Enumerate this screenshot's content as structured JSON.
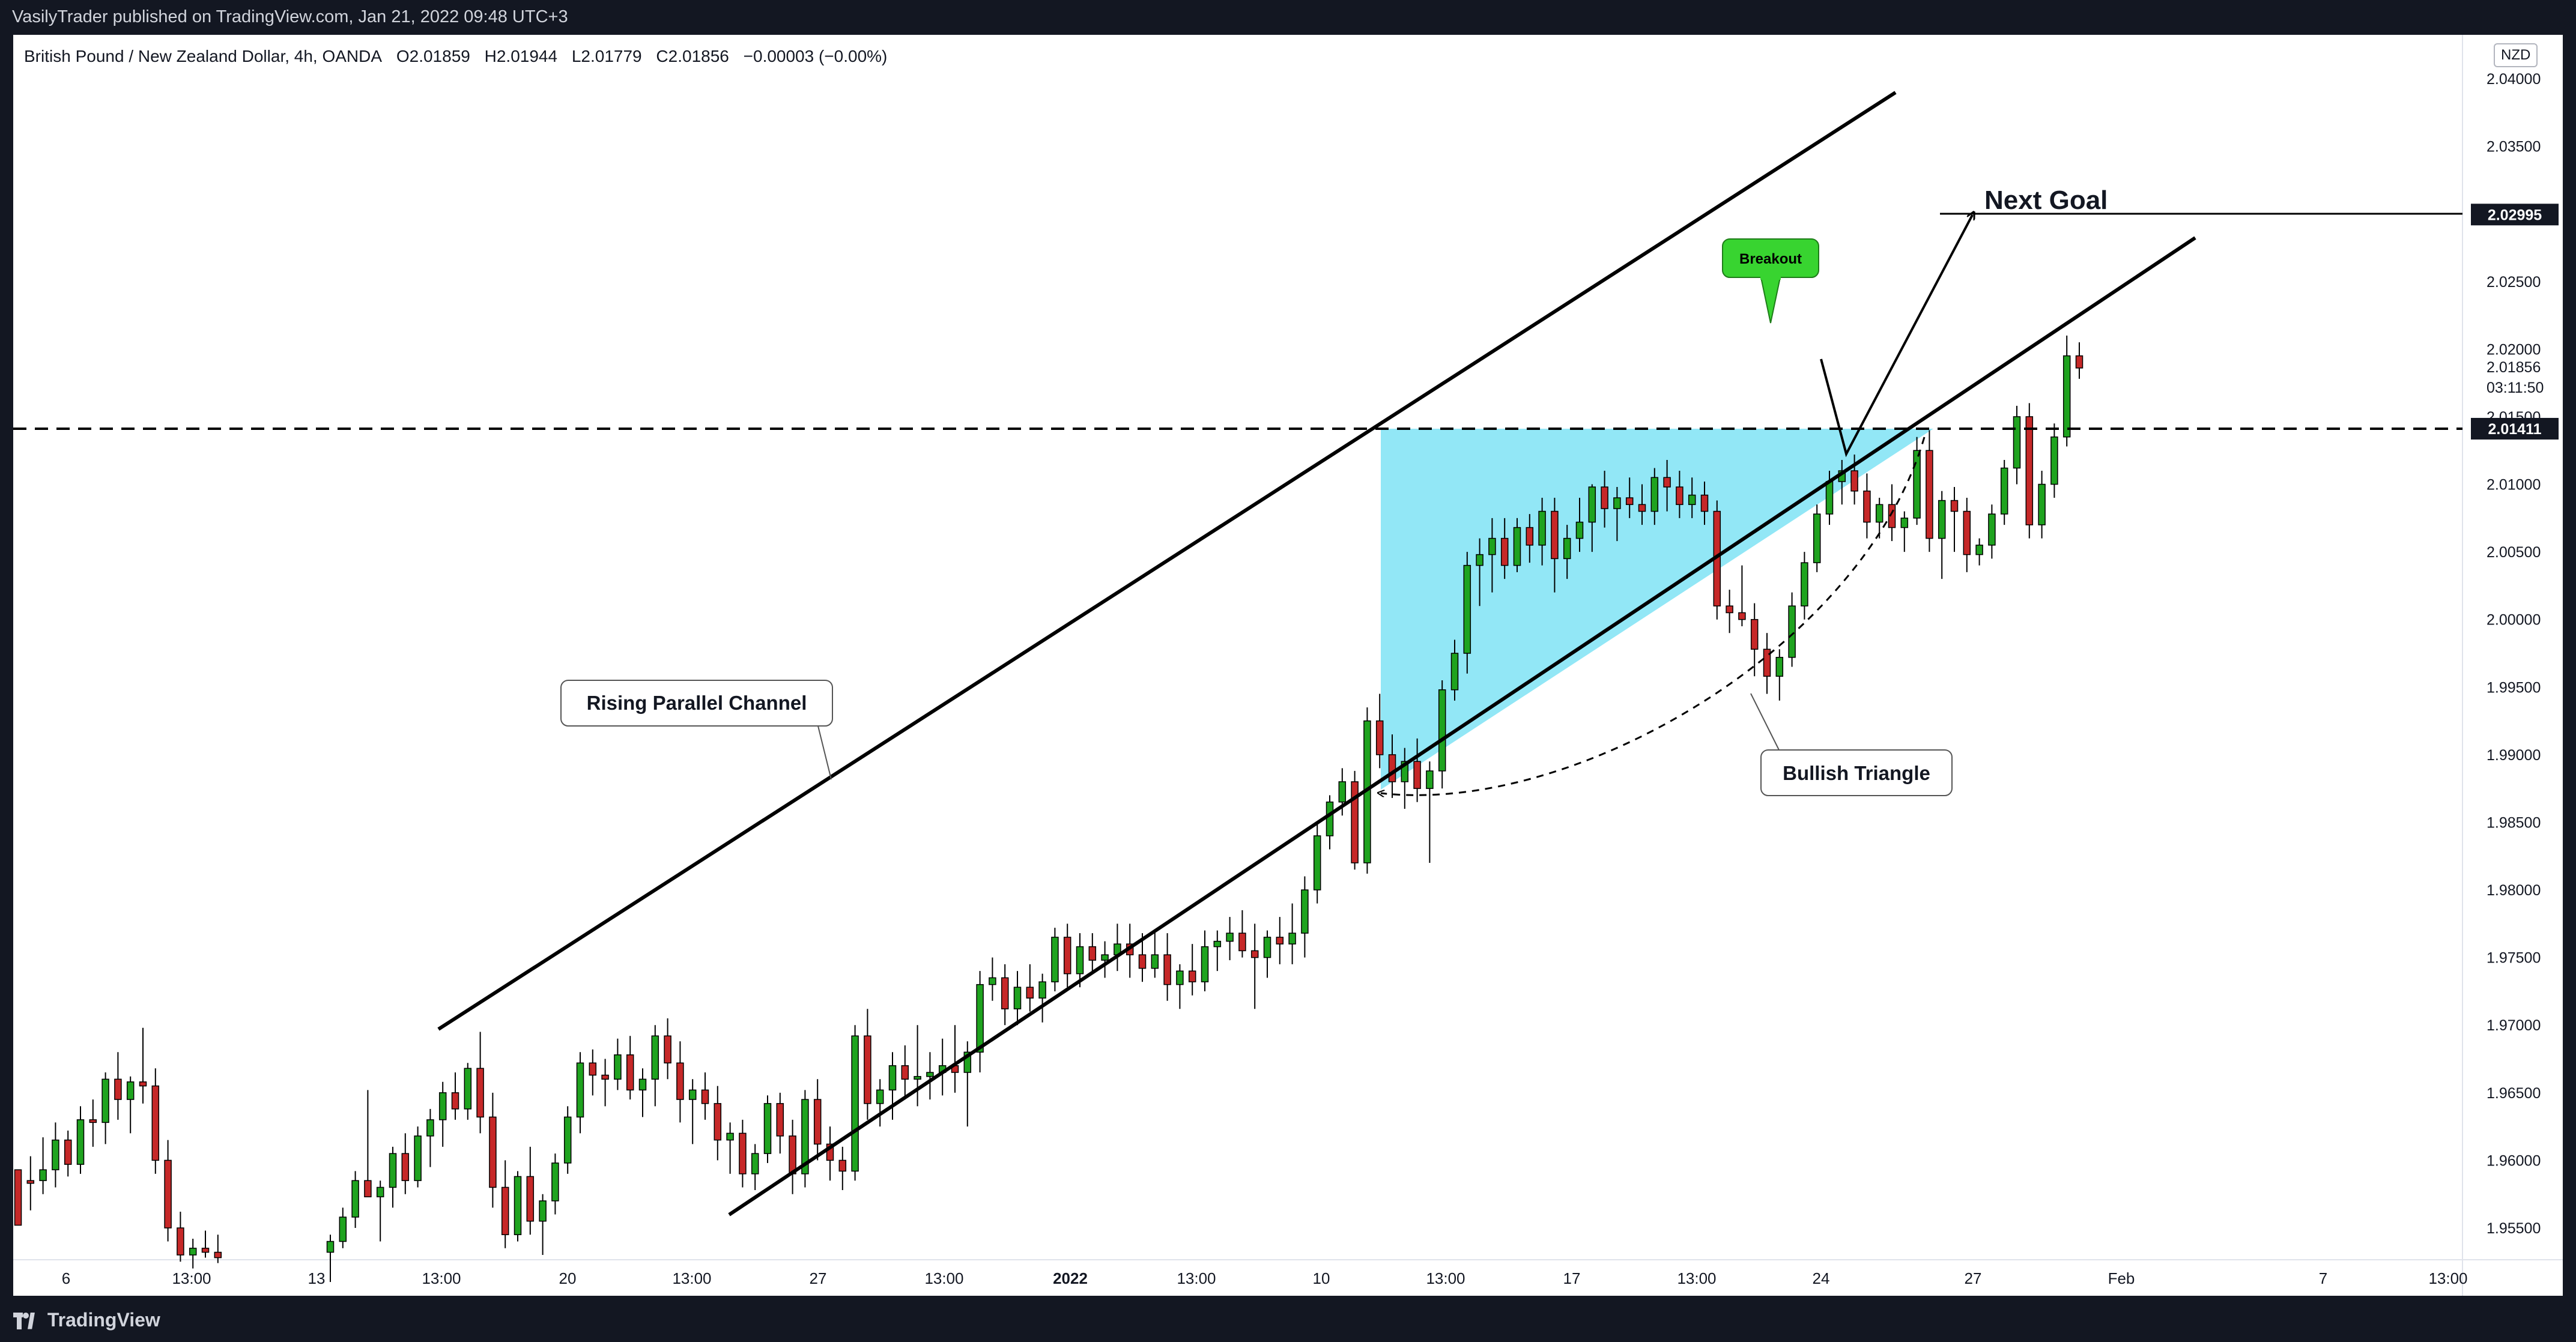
{
  "header": {
    "published_by": "VasilyTrader published on TradingView.com, Jan 21, 2022 09:48 UTC+3"
  },
  "symbol": {
    "name": "British Pound / New Zealand Dollar, 4h, OANDA",
    "open": "O2.01859",
    "high": "H2.01944",
    "low": "L2.01779",
    "close": "C2.01856",
    "change": "−0.00003 (−0.00%)",
    "currency": "NZD"
  },
  "footer": {
    "brand": "TradingView"
  },
  "colors": {
    "up": "#26a69a",
    "up_fill": "#2fbf2f",
    "down": "#d32f2f",
    "triangle_fill": "#7fe3f5",
    "breakout_badge": "#38d430",
    "background": "#131722"
  },
  "chart_data": {
    "type": "candlestick",
    "timeframe": "4h",
    "y_axis": {
      "ylim": [
        1.952,
        2.0415
      ],
      "tick_labels": [
        "2.04000",
        "2.03500",
        "2.03000",
        "2.02500",
        "2.02000",
        "2.01500",
        "2.01000",
        "2.00500",
        "2.00000",
        "1.99500",
        "1.99000",
        "1.98500",
        "1.98000",
        "1.97500",
        "1.97000",
        "1.96500",
        "1.96000",
        "1.95500"
      ],
      "tick_values": [
        2.04,
        2.035,
        2.03,
        2.025,
        2.02,
        2.015,
        2.01,
        2.005,
        2.0,
        1.995,
        1.99,
        1.985,
        1.98,
        1.975,
        1.97,
        1.965,
        1.96,
        1.955
      ]
    },
    "x_axis": {
      "tick_labels": [
        "6",
        "13:00",
        "13",
        "13:00",
        "20",
        "13:00",
        "27",
        "13:00",
        "2022",
        "13:00",
        "10",
        "13:00",
        "17",
        "13:00",
        "24",
        "27",
        "Feb",
        "7",
        "13:00"
      ],
      "bold_ticks": [
        "2022"
      ]
    },
    "last_price": "2.01856",
    "countdown": "03:11:50",
    "price_tags": [
      {
        "label": "2.02995",
        "value": 2.02995
      },
      {
        "label": "2.01411",
        "value": 2.01411
      }
    ],
    "annotations": {
      "channel_label": "Rising Parallel Channel",
      "triangle_label": "Bullish Triangle",
      "breakout_label": "Breakout",
      "goal_label": "Next Goal"
    },
    "candles": [
      [
        1.9593,
        1.9593,
        1.9553,
        1.9552
      ],
      [
        1.9585,
        1.9603,
        1.9563,
        1.9583
      ],
      [
        1.9585,
        1.9617,
        1.9575,
        1.9593
      ],
      [
        1.9593,
        1.9628,
        1.958,
        1.9615
      ],
      [
        1.9615,
        1.9622,
        1.9588,
        1.9597
      ],
      [
        1.9597,
        1.964,
        1.959,
        1.963
      ],
      [
        1.963,
        1.9645,
        1.961,
        1.9628
      ],
      [
        1.9628,
        1.9665,
        1.9612,
        1.966
      ],
      [
        1.966,
        1.968,
        1.963,
        1.9645
      ],
      [
        1.9645,
        1.9662,
        1.962,
        1.9658
      ],
      [
        1.9658,
        1.9698,
        1.9642,
        1.9655
      ],
      [
        1.9655,
        1.9668,
        1.959,
        1.96
      ],
      [
        1.96,
        1.9615,
        1.954,
        1.955
      ],
      [
        1.955,
        1.9562,
        1.9525,
        1.953
      ],
      [
        1.953,
        1.9542,
        1.952,
        1.9535
      ],
      [
        1.9535,
        1.9548,
        1.9528,
        1.9532
      ],
      [
        1.9532,
        1.9545,
        1.9524,
        1.9528
      ],
      [
        1.9532,
        1.9545,
        1.951,
        1.954
      ],
      [
        1.954,
        1.9565,
        1.9535,
        1.9558
      ],
      [
        1.9558,
        1.9592,
        1.955,
        1.9585
      ],
      [
        1.9585,
        1.9652,
        1.9575,
        1.9573
      ],
      [
        1.9573,
        1.9585,
        1.954,
        1.958
      ],
      [
        1.958,
        1.961,
        1.9565,
        1.9605
      ],
      [
        1.9605,
        1.962,
        1.9575,
        1.9585
      ],
      [
        1.9585,
        1.9625,
        1.958,
        1.9618
      ],
      [
        1.9618,
        1.9638,
        1.9595,
        1.963
      ],
      [
        1.963,
        1.9658,
        1.961,
        1.965
      ],
      [
        1.965,
        1.9665,
        1.963,
        1.9638
      ],
      [
        1.9638,
        1.9672,
        1.963,
        1.9668
      ],
      [
        1.9668,
        1.9695,
        1.962,
        1.9632
      ],
      [
        1.9632,
        1.965,
        1.9565,
        1.958
      ],
      [
        1.958,
        1.96,
        1.9535,
        1.9545
      ],
      [
        1.9545,
        1.9592,
        1.954,
        1.9588
      ],
      [
        1.9588,
        1.961,
        1.9545,
        1.9555
      ],
      [
        1.9555,
        1.9575,
        1.953,
        1.957
      ],
      [
        1.957,
        1.9605,
        1.956,
        1.9598
      ],
      [
        1.9598,
        1.964,
        1.959,
        1.9632
      ],
      [
        1.9632,
        1.968,
        1.962,
        1.9672
      ],
      [
        1.9672,
        1.9682,
        1.9648,
        1.9663
      ],
      [
        1.9663,
        1.9675,
        1.964,
        1.966
      ],
      [
        1.966,
        1.969,
        1.9652,
        1.9678
      ],
      [
        1.9678,
        1.9692,
        1.9645,
        1.9652
      ],
      [
        1.9652,
        1.9668,
        1.9632,
        1.966
      ],
      [
        1.966,
        1.97,
        1.964,
        1.9692
      ],
      [
        1.9692,
        1.9705,
        1.966,
        1.9672
      ],
      [
        1.9672,
        1.9688,
        1.9628,
        1.9645
      ],
      [
        1.9645,
        1.966,
        1.9612,
        1.9652
      ],
      [
        1.9652,
        1.9665,
        1.963,
        1.9642
      ],
      [
        1.9642,
        1.9655,
        1.96,
        1.9615
      ],
      [
        1.9615,
        1.9628,
        1.959,
        1.962
      ],
      [
        1.962,
        1.963,
        1.958,
        1.959
      ],
      [
        1.959,
        1.9612,
        1.9578,
        1.9605
      ],
      [
        1.9605,
        1.9648,
        1.9598,
        1.9642
      ],
      [
        1.9642,
        1.965,
        1.9605,
        1.9618
      ],
      [
        1.9618,
        1.963,
        1.9575,
        1.959
      ],
      [
        1.959,
        1.9652,
        1.958,
        1.9645
      ],
      [
        1.9645,
        1.966,
        1.96,
        1.9612
      ],
      [
        1.9612,
        1.9625,
        1.9585,
        1.96
      ],
      [
        1.96,
        1.961,
        1.9578,
        1.9592
      ],
      [
        1.9592,
        1.97,
        1.9585,
        1.9692
      ],
      [
        1.9692,
        1.9712,
        1.963,
        1.9642
      ],
      [
        1.9642,
        1.966,
        1.9625,
        1.9652
      ],
      [
        1.9652,
        1.968,
        1.963,
        1.967
      ],
      [
        1.967,
        1.9685,
        1.9645,
        1.966
      ],
      [
        1.966,
        1.97,
        1.964,
        1.9662
      ],
      [
        1.9662,
        1.968,
        1.9645,
        1.9665
      ],
      [
        1.9665,
        1.969,
        1.9648,
        1.967
      ],
      [
        1.967,
        1.97,
        1.965,
        1.9665
      ],
      [
        1.9665,
        1.9688,
        1.9625,
        1.968
      ],
      [
        1.968,
        1.974,
        1.9665,
        1.973
      ],
      [
        1.973,
        1.975,
        1.9718,
        1.9735
      ],
      [
        1.9735,
        1.9745,
        1.97,
        1.9712
      ],
      [
        1.9712,
        1.974,
        1.97,
        1.9728
      ],
      [
        1.9728,
        1.9745,
        1.971,
        1.972
      ],
      [
        1.972,
        1.9738,
        1.9702,
        1.9732
      ],
      [
        1.9732,
        1.9772,
        1.9725,
        1.9765
      ],
      [
        1.9765,
        1.9775,
        1.9728,
        1.9738
      ],
      [
        1.9738,
        1.9768,
        1.9728,
        1.9758
      ],
      [
        1.9758,
        1.9768,
        1.974,
        1.9748
      ],
      [
        1.9748,
        1.9762,
        1.9735,
        1.9752
      ],
      [
        1.9752,
        1.9775,
        1.974,
        1.976
      ],
      [
        1.976,
        1.9775,
        1.9735,
        1.9752
      ],
      [
        1.9752,
        1.9768,
        1.9732,
        1.9742
      ],
      [
        1.9742,
        1.977,
        1.9735,
        1.9752
      ],
      [
        1.9752,
        1.9768,
        1.9718,
        1.973
      ],
      [
        1.973,
        1.9745,
        1.9712,
        1.974
      ],
      [
        1.974,
        1.976,
        1.9722,
        1.9732
      ],
      [
        1.9732,
        1.977,
        1.9725,
        1.9758
      ],
      [
        1.9758,
        1.977,
        1.974,
        1.9762
      ],
      [
        1.9762,
        1.978,
        1.9748,
        1.9768
      ],
      [
        1.9768,
        1.9785,
        1.975,
        1.9755
      ],
      [
        1.9755,
        1.9775,
        1.9712,
        1.975
      ],
      [
        1.975,
        1.977,
        1.9735,
        1.9765
      ],
      [
        1.9765,
        1.978,
        1.9745,
        1.976
      ],
      [
        1.976,
        1.979,
        1.9745,
        1.9768
      ],
      [
        1.9768,
        1.981,
        1.975,
        1.98
      ],
      [
        1.98,
        1.985,
        1.979,
        1.984
      ],
      [
        1.984,
        1.987,
        1.983,
        1.9865
      ],
      [
        1.9865,
        1.989,
        1.9855,
        1.988
      ],
      [
        1.988,
        1.9888,
        1.9815,
        1.982
      ],
      [
        1.982,
        1.9935,
        1.9812,
        1.9925
      ],
      [
        1.9925,
        1.9945,
        1.989,
        1.99
      ],
      [
        1.99,
        1.9915,
        1.9868,
        1.988
      ],
      [
        1.988,
        1.9905,
        1.986,
        1.9895
      ],
      [
        1.9895,
        1.9912,
        1.9865,
        1.9875
      ],
      [
        1.9875,
        1.9895,
        1.982,
        1.9888
      ],
      [
        1.9888,
        1.9955,
        1.9875,
        1.9948
      ],
      [
        1.9948,
        1.9985,
        1.994,
        1.9975
      ],
      [
        1.9975,
        2.005,
        1.996,
        2.004
      ],
      [
        2.004,
        2.006,
        2.001,
        2.0048
      ],
      [
        2.0048,
        2.0075,
        2.002,
        2.006
      ],
      [
        2.006,
        2.0075,
        2.003,
        2.004
      ],
      [
        2.004,
        2.0075,
        2.0035,
        2.0068
      ],
      [
        2.0068,
        2.0078,
        2.0042,
        2.0055
      ],
      [
        2.0055,
        2.009,
        2.004,
        2.008
      ],
      [
        2.008,
        2.009,
        2.002,
        2.0045
      ],
      [
        2.0045,
        2.007,
        2.003,
        2.006
      ],
      [
        2.006,
        2.009,
        2.005,
        2.0072
      ],
      [
        2.0072,
        2.01,
        2.005,
        2.0098
      ],
      [
        2.0098,
        2.011,
        2.0068,
        2.0082
      ],
      [
        2.0082,
        2.0098,
        2.0058,
        2.009
      ],
      [
        2.009,
        2.0105,
        2.0075,
        2.0085
      ],
      [
        2.0085,
        2.01,
        2.007,
        2.008
      ],
      [
        2.008,
        2.0112,
        2.007,
        2.0105
      ],
      [
        2.0105,
        2.0118,
        2.008,
        2.0098
      ],
      [
        2.0098,
        2.011,
        2.0075,
        2.0085
      ],
      [
        2.0085,
        2.0105,
        2.0075,
        2.0092
      ],
      [
        2.0092,
        2.0102,
        2.007,
        2.008
      ],
      [
        2.008,
        2.0088,
        2.0,
        2.001
      ],
      [
        2.001,
        2.0022,
        1.999,
        2.0005
      ],
      [
        2.0005,
        2.004,
        1.9995,
        2.0
      ],
      [
        2.0,
        2.0012,
        1.9958,
        1.9978
      ],
      [
        1.9978,
        1.999,
        1.9945,
        1.9958
      ],
      [
        1.9958,
        1.9978,
        1.994,
        1.9972
      ],
      [
        1.9972,
        2.002,
        1.9965,
        2.001
      ],
      [
        2.001,
        2.005,
        2.0,
        2.0042
      ],
      [
        2.0042,
        2.0085,
        2.0035,
        2.0078
      ],
      [
        2.0078,
        2.011,
        2.007,
        2.0102
      ],
      [
        2.0102,
        2.0118,
        2.0085,
        2.011
      ],
      [
        2.011,
        2.0122,
        2.0085,
        2.0095
      ],
      [
        2.0095,
        2.0108,
        2.006,
        2.0072
      ],
      [
        2.0072,
        2.009,
        2.006,
        2.0085
      ],
      [
        2.0085,
        2.01,
        2.0058,
        2.0068
      ],
      [
        2.0068,
        2.008,
        2.005,
        2.0075
      ],
      [
        2.0075,
        2.0135,
        2.007,
        2.0125
      ],
      [
        2.0125,
        2.014,
        2.005,
        2.006
      ],
      [
        2.006,
        2.0095,
        2.003,
        2.0088
      ],
      [
        2.0088,
        2.0098,
        2.005,
        2.008
      ],
      [
        2.008,
        2.009,
        2.0035,
        2.0048
      ],
      [
        2.0048,
        2.006,
        2.004,
        2.0055
      ],
      [
        2.0055,
        2.0085,
        2.0045,
        2.0078
      ],
      [
        2.0078,
        2.0118,
        2.007,
        2.0112
      ],
      [
        2.0112,
        2.0158,
        2.01,
        2.015
      ],
      [
        2.015,
        2.016,
        2.006,
        2.007
      ],
      [
        2.007,
        2.011,
        2.006,
        2.01
      ],
      [
        2.01,
        2.0145,
        2.009,
        2.0135
      ],
      [
        2.0135,
        2.021,
        2.0128,
        2.0195
      ],
      [
        2.0195,
        2.0205,
        2.0178,
        2.0186
      ]
    ]
  }
}
